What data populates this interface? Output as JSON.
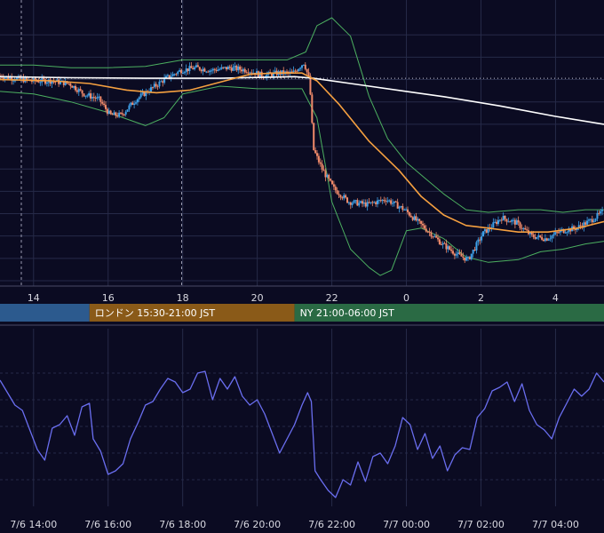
{
  "colors": {
    "background": "#0b0b22",
    "grid": "#262a48",
    "up_candle": "#3ea0e8",
    "down_candle": "#f08a6a",
    "ma_long": "#ffffff",
    "ma_mid": "#f5a040",
    "bollinger": "#4caf60",
    "oscillator": "#6a6ef0",
    "session_tokyo": "#2c5a8e",
    "session_london": "#8a5a18",
    "session_ny": "#2a6a44"
  },
  "price_axis": {
    "tick_labels": [
      "14",
      "16",
      "18",
      "20",
      "22",
      "0",
      "2",
      "4"
    ],
    "tick_hours": [
      14,
      16,
      18,
      20,
      22,
      24,
      26,
      28
    ],
    "x_range_hours": [
      13.1,
      29.3
    ]
  },
  "sessions": [
    {
      "name": "tokyo",
      "label": "",
      "start_hour": 13.1,
      "end_hour": 15.5
    },
    {
      "name": "london",
      "label": "ロンドン 15:30-21:00 JST",
      "start_hour": 15.5,
      "end_hour": 21.0
    },
    {
      "name": "ny",
      "label": "NY 21:00-06:00 JST",
      "start_hour": 21.0,
      "end_hour": 30.0
    }
  ],
  "oscillator_axis": {
    "tick_labels": [
      "7/6 14:00",
      "7/6 16:00",
      "7/6 18:00",
      "7/6 20:00",
      "7/6 22:00",
      "7/7 00:00",
      "7/7 02:00",
      "7/7 04:00"
    ]
  },
  "chart_data": [
    {
      "type": "candlestick",
      "name": "price",
      "x_unit": "hour (JST)",
      "y_range": [
        0,
        100
      ],
      "reference_level": 77,
      "vertical_markers_hours": [
        13.1,
        17.4
      ],
      "price_path": [
        [
          13.1,
          78
        ],
        [
          13.5,
          77
        ],
        [
          14.0,
          76
        ],
        [
          14.5,
          76
        ],
        [
          15.0,
          75
        ],
        [
          15.4,
          71
        ],
        [
          15.8,
          69
        ],
        [
          16.1,
          63
        ],
        [
          16.4,
          63
        ],
        [
          16.8,
          69
        ],
        [
          17.2,
          73
        ],
        [
          17.6,
          77
        ],
        [
          18.0,
          80
        ],
        [
          18.4,
          81
        ],
        [
          18.8,
          80
        ],
        [
          19.3,
          81
        ],
        [
          19.8,
          80
        ],
        [
          20.2,
          78
        ],
        [
          20.6,
          79
        ],
        [
          21.0,
          79
        ],
        [
          21.3,
          83
        ],
        [
          21.45,
          76
        ],
        [
          21.55,
          50
        ],
        [
          21.8,
          42
        ],
        [
          22.1,
          35
        ],
        [
          22.5,
          30
        ],
        [
          23.0,
          29
        ],
        [
          23.5,
          31
        ],
        [
          24.0,
          27
        ],
        [
          24.3,
          23
        ],
        [
          24.7,
          18
        ],
        [
          25.0,
          14
        ],
        [
          25.4,
          10
        ],
        [
          25.7,
          8
        ],
        [
          26.1,
          18
        ],
        [
          26.6,
          24
        ],
        [
          27.0,
          22
        ],
        [
          27.4,
          17
        ],
        [
          27.8,
          16
        ],
        [
          28.2,
          19
        ],
        [
          28.6,
          20
        ],
        [
          29.0,
          23
        ],
        [
          29.3,
          26
        ]
      ],
      "ma_long_path": [
        [
          13.1,
          77.6
        ],
        [
          15,
          77.2
        ],
        [
          17,
          77
        ],
        [
          19,
          77
        ],
        [
          21,
          77.6
        ],
        [
          21.5,
          77
        ],
        [
          22.5,
          75
        ],
        [
          24,
          72
        ],
        [
          25,
          70
        ],
        [
          26.5,
          66.5
        ],
        [
          28,
          62.5
        ],
        [
          29.3,
          59.5
        ]
      ],
      "ma_mid_path": [
        [
          13.1,
          76.5
        ],
        [
          14.5,
          76
        ],
        [
          15.5,
          75
        ],
        [
          16.5,
          72.5
        ],
        [
          17.3,
          71.5
        ],
        [
          18.2,
          72.5
        ],
        [
          19.0,
          75.5
        ],
        [
          19.8,
          78.5
        ],
        [
          20.5,
          79
        ],
        [
          21.2,
          79
        ],
        [
          21.6,
          76
        ],
        [
          22.2,
          67
        ],
        [
          23.0,
          53
        ],
        [
          23.8,
          42
        ],
        [
          24.4,
          32
        ],
        [
          25.0,
          25
        ],
        [
          25.6,
          21
        ],
        [
          26.2,
          20
        ],
        [
          27.0,
          18.5
        ],
        [
          27.8,
          18.5
        ],
        [
          28.6,
          20
        ],
        [
          29.3,
          22.5
        ]
      ],
      "bollinger_upper_path": [
        [
          13.1,
          82
        ],
        [
          14,
          82
        ],
        [
          15,
          81
        ],
        [
          16,
          81
        ],
        [
          17,
          81.5
        ],
        [
          18,
          84
        ],
        [
          19,
          84
        ],
        [
          20,
          84
        ],
        [
          20.8,
          84
        ],
        [
          21.3,
          87
        ],
        [
          21.6,
          97
        ],
        [
          22.0,
          100
        ],
        [
          22.5,
          93
        ],
        [
          23.0,
          70
        ],
        [
          23.5,
          54
        ],
        [
          24.0,
          45
        ],
        [
          24.5,
          39
        ],
        [
          25.0,
          33
        ],
        [
          25.6,
          27
        ],
        [
          26.2,
          26
        ],
        [
          27.0,
          27
        ],
        [
          27.6,
          27
        ],
        [
          28.2,
          26
        ],
        [
          28.8,
          27
        ],
        [
          29.3,
          27
        ]
      ],
      "bollinger_lower_path": [
        [
          13.1,
          72
        ],
        [
          14,
          71
        ],
        [
          15,
          68
        ],
        [
          16,
          64
        ],
        [
          17,
          59
        ],
        [
          17.5,
          62
        ],
        [
          18,
          71
        ],
        [
          19,
          74
        ],
        [
          20,
          73
        ],
        [
          20.8,
          73
        ],
        [
          21.2,
          73
        ],
        [
          21.6,
          62
        ],
        [
          22.0,
          30
        ],
        [
          22.5,
          12
        ],
        [
          23.0,
          5
        ],
        [
          23.3,
          2
        ],
        [
          23.6,
          4
        ],
        [
          24,
          19
        ],
        [
          24.4,
          20
        ],
        [
          25.0,
          16
        ],
        [
          25.6,
          9
        ],
        [
          26.2,
          7
        ],
        [
          27.0,
          8
        ],
        [
          27.6,
          11
        ],
        [
          28.2,
          12
        ],
        [
          28.8,
          14
        ],
        [
          29.3,
          15
        ]
      ]
    },
    {
      "type": "line",
      "name": "oscillator",
      "x_unit": "hour (JST)",
      "y_range": [
        0,
        100
      ],
      "gridlines": [
        15,
        30,
        45,
        60,
        75
      ],
      "points": [
        [
          13.1,
          71
        ],
        [
          13.3,
          64
        ],
        [
          13.5,
          57
        ],
        [
          13.7,
          54
        ],
        [
          13.9,
          43
        ],
        [
          14.1,
          32
        ],
        [
          14.3,
          26
        ],
        [
          14.5,
          44
        ],
        [
          14.7,
          46
        ],
        [
          14.9,
          51
        ],
        [
          15.1,
          40
        ],
        [
          15.3,
          56
        ],
        [
          15.5,
          58
        ],
        [
          15.6,
          38
        ],
        [
          15.8,
          31
        ],
        [
          16.0,
          18
        ],
        [
          16.2,
          20
        ],
        [
          16.4,
          24
        ],
        [
          16.6,
          38
        ],
        [
          16.8,
          47
        ],
        [
          17.0,
          57
        ],
        [
          17.2,
          59
        ],
        [
          17.4,
          66
        ],
        [
          17.6,
          72
        ],
        [
          17.8,
          70
        ],
        [
          18.0,
          64
        ],
        [
          18.2,
          66
        ],
        [
          18.4,
          75
        ],
        [
          18.6,
          76
        ],
        [
          18.8,
          60
        ],
        [
          19.0,
          72
        ],
        [
          19.2,
          66
        ],
        [
          19.4,
          73
        ],
        [
          19.6,
          62
        ],
        [
          19.8,
          57
        ],
        [
          20.0,
          60
        ],
        [
          20.2,
          52
        ],
        [
          20.4,
          41
        ],
        [
          20.6,
          30
        ],
        [
          20.8,
          38
        ],
        [
          21.0,
          46
        ],
        [
          21.2,
          57
        ],
        [
          21.35,
          64
        ],
        [
          21.45,
          59
        ],
        [
          21.55,
          20
        ],
        [
          21.7,
          15
        ],
        [
          21.9,
          9
        ],
        [
          22.1,
          5
        ],
        [
          22.3,
          15
        ],
        [
          22.5,
          12
        ],
        [
          22.7,
          25
        ],
        [
          22.9,
          14
        ],
        [
          23.1,
          28
        ],
        [
          23.3,
          30
        ],
        [
          23.5,
          24
        ],
        [
          23.7,
          34
        ],
        [
          23.9,
          50
        ],
        [
          24.1,
          46
        ],
        [
          24.3,
          32
        ],
        [
          24.5,
          41
        ],
        [
          24.7,
          27
        ],
        [
          24.9,
          34
        ],
        [
          25.1,
          20
        ],
        [
          25.3,
          29
        ],
        [
          25.5,
          33
        ],
        [
          25.7,
          32
        ],
        [
          25.9,
          50
        ],
        [
          26.1,
          55
        ],
        [
          26.3,
          65
        ],
        [
          26.5,
          67
        ],
        [
          26.7,
          70
        ],
        [
          26.9,
          59
        ],
        [
          27.1,
          69
        ],
        [
          27.3,
          54
        ],
        [
          27.5,
          46
        ],
        [
          27.7,
          43
        ],
        [
          27.9,
          38
        ],
        [
          28.1,
          50
        ],
        [
          28.3,
          58
        ],
        [
          28.5,
          66
        ],
        [
          28.7,
          62
        ],
        [
          28.9,
          66
        ],
        [
          29.1,
          75
        ],
        [
          29.3,
          70
        ]
      ]
    }
  ]
}
